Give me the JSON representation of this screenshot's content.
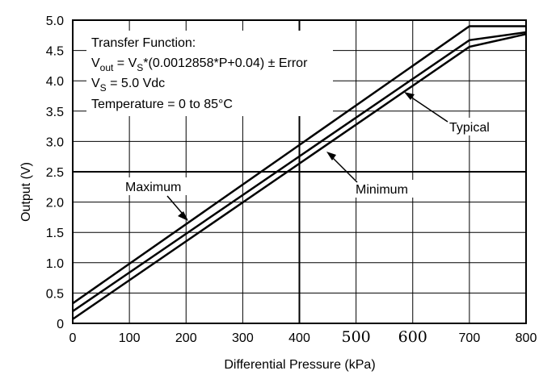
{
  "chart_data": {
    "type": "line",
    "xlabel": "Differential Pressure (kPa)",
    "ylabel": "Output (V)",
    "xlim": [
      0,
      800
    ],
    "ylim": [
      0,
      5.0
    ],
    "x_ticks": [
      0,
      100,
      200,
      300,
      400,
      500,
      600,
      700,
      800
    ],
    "y_ticks": [
      "0",
      "0.5",
      "1.0",
      "1.5",
      "2.0",
      "2.5",
      "3.0",
      "3.5",
      "4.0",
      "4.5",
      "5.0"
    ],
    "grid": true,
    "series": [
      {
        "name": "Maximum",
        "x": [
          0,
          700,
          800
        ],
        "y": [
          0.33,
          4.9,
          4.9
        ]
      },
      {
        "name": "Typical",
        "x": [
          0,
          700,
          800
        ],
        "y": [
          0.2,
          4.67,
          4.8
        ]
      },
      {
        "name": "Minimum",
        "x": [
          0,
          700,
          800
        ],
        "y": [
          0.07,
          4.56,
          4.77
        ]
      }
    ],
    "annotation_box": {
      "line1": "Transfer Function:",
      "line2_prefix": "V",
      "line2_sub_out": "out",
      "line2_mid": " = V",
      "line2_sub_s": "S",
      "line2_rest": "*(0.0012858*P+0.04) ± Error",
      "line3_prefix": "V",
      "line3_sub": "S",
      "line3_rest": " = 5.0 Vdc",
      "line4": "Temperature = 0 to 85°C"
    },
    "callouts": {
      "maximum": "Maximum",
      "typical": "Typical",
      "minimum": "Minimum"
    }
  }
}
